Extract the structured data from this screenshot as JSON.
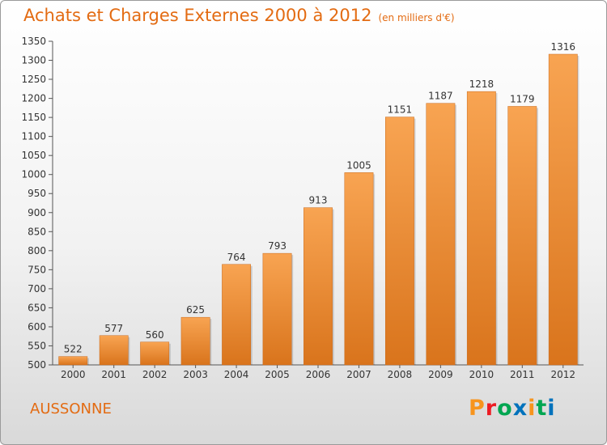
{
  "header": {
    "title": "Achats et Charges Externes 2000 à 2012",
    "subtitle": "(en milliers d'€)"
  },
  "footer": {
    "commune": "AUSSONNE",
    "logo_letters": [
      "P",
      "r",
      "o",
      "x",
      "i",
      "t",
      "i"
    ],
    "logo_colors": [
      "#f7941d",
      "#ed1c24",
      "#00a651",
      "#0072bc",
      "#f7941d",
      "#00a651",
      "#0072bc"
    ]
  },
  "chart_data": {
    "type": "bar",
    "title": "Achats et Charges Externes 2000 à 2012",
    "subtitle": "(en milliers d'€)",
    "categories": [
      "2000",
      "2001",
      "2002",
      "2003",
      "2004",
      "2005",
      "2006",
      "2007",
      "2008",
      "2009",
      "2010",
      "2011",
      "2012"
    ],
    "values": [
      522,
      577,
      560,
      625,
      764,
      793,
      913,
      1005,
      1151,
      1187,
      1218,
      1179,
      1316
    ],
    "ylim": [
      500,
      1350
    ],
    "ytick_step": 50,
    "grid": false,
    "bar_color": "#f28c28",
    "legend": "none"
  }
}
